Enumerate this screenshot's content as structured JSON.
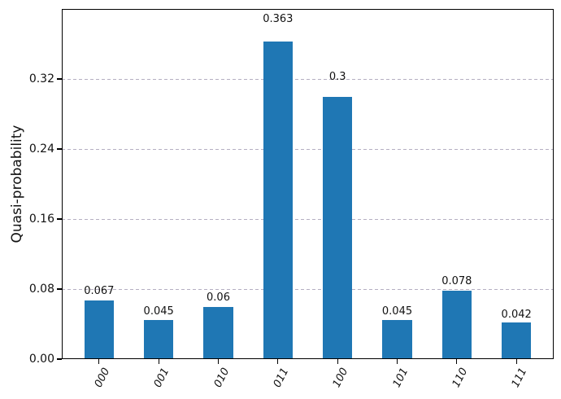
{
  "chart_data": {
    "type": "bar",
    "title": "",
    "xlabel": "",
    "ylabel": "Quasi-probability",
    "categories": [
      "000",
      "001",
      "010",
      "011",
      "100",
      "101",
      "110",
      "111"
    ],
    "values": [
      0.067,
      0.045,
      0.06,
      0.363,
      0.3,
      0.045,
      0.078,
      0.042
    ],
    "bar_value_labels": [
      "0.067",
      "0.045",
      "0.06",
      "0.363",
      "0.3",
      "0.045",
      "0.078",
      "0.042"
    ],
    "ytick_labels": [
      "0.00",
      "0.08",
      "0.16",
      "0.24",
      "0.32"
    ],
    "ytick_values": [
      0.0,
      0.08,
      0.16,
      0.24,
      0.32
    ],
    "ylim": [
      0.0,
      0.4
    ],
    "bar_color": "#1f77b4",
    "grid": "y-only",
    "grid_linestyle": "dashed",
    "grid_color": "#b5afc2",
    "legend_position": "none",
    "bar_width_fraction": 0.5,
    "label_offset_factor": 1.05
  }
}
